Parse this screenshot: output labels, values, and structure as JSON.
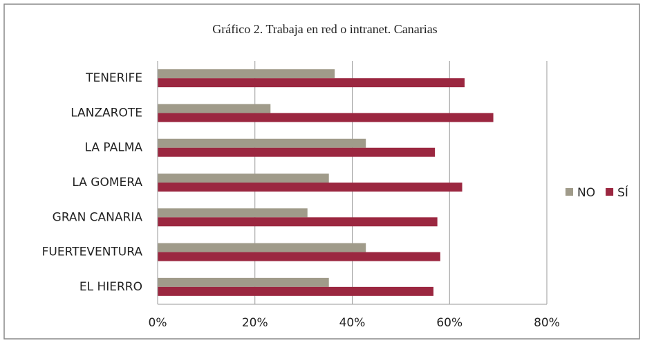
{
  "chart_data": {
    "type": "bar",
    "orientation": "horizontal",
    "title": "Gráfico 2. Trabaja en red o intranet. Canarias",
    "categories": [
      "TENERIFE",
      "LANZAROTE",
      "LA PALMA",
      "LA GOMERA",
      "GRAN CANARIA",
      "FUERTEVENTURA",
      "EL HIERRO"
    ],
    "series": [
      {
        "name": "NO",
        "color": "#a09b8a",
        "values": [
          36.4,
          23.2,
          42.8,
          35.2,
          30.8,
          42.8,
          35.2
        ]
      },
      {
        "name": "SÍ",
        "color": "#9b2740",
        "values": [
          63.1,
          69.0,
          57.0,
          62.6,
          57.5,
          58.1,
          56.7
        ]
      }
    ],
    "xlim": [
      0,
      80
    ],
    "xticks": [
      {
        "value": 0,
        "label": "0%"
      },
      {
        "value": 20,
        "label": "20%"
      },
      {
        "value": 40,
        "label": "40%"
      },
      {
        "value": 60,
        "label": "60%"
      },
      {
        "value": 80,
        "label": "80%"
      }
    ],
    "grid": true,
    "legend": "right"
  }
}
